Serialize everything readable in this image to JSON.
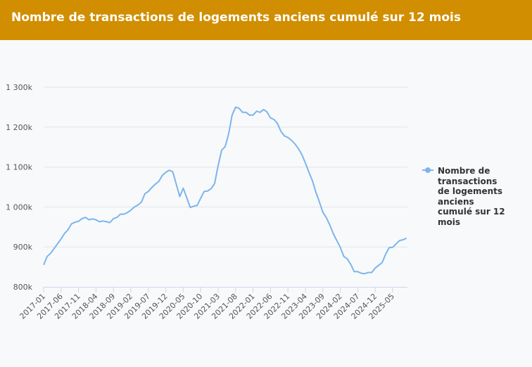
{
  "header": {
    "title": "Nombre de transactions de logements anciens cumulé sur 12 mois"
  },
  "chart_data": {
    "type": "line",
    "title": "Nombre de transactions de logements anciens cumulé sur 12 mois",
    "x_start": "2017-01",
    "x_end": "2025-09",
    "x_tick_labels": [
      "2017-01",
      "2017-06",
      "2017-11",
      "2018-04",
      "2018-09",
      "2019-02",
      "2019-07",
      "2019-12",
      "2020-05",
      "2020-10",
      "2021-03",
      "2021-08",
      "2022-01",
      "2022-06",
      "2022-11",
      "2023-04",
      "2023-09",
      "2024-02",
      "2024-07",
      "2024-12",
      "2025-05"
    ],
    "y_ticks": [
      800,
      900,
      1000,
      1100,
      1200,
      1300
    ],
    "y_tick_labels": [
      "800k",
      "900k",
      "1 000k",
      "1 100k",
      "1 200k",
      "1 300k"
    ],
    "ylim": [
      800,
      1300
    ],
    "y_unit": "thousands",
    "grid": "horizontal",
    "legend_position": "right",
    "color": "#7cb5ec",
    "series": [
      {
        "name": "Nombre de transactions de logements anciens cumulé sur 12 mois",
        "values": [
          855,
          876,
          884,
          896,
          908,
          920,
          934,
          943,
          958,
          962,
          964,
          971,
          974,
          968,
          970,
          968,
          963,
          965,
          963,
          961,
          971,
          974,
          982,
          982,
          986,
          992,
          1000,
          1005,
          1012,
          1033,
          1039,
          1049,
          1057,
          1064,
          1079,
          1087,
          1092,
          1088,
          1057,
          1026,
          1047,
          1023,
          999,
          1002,
          1004,
          1022,
          1039,
          1040,
          1046,
          1059,
          1104,
          1142,
          1151,
          1183,
          1230,
          1250,
          1247,
          1237,
          1237,
          1230,
          1230,
          1240,
          1237,
          1244,
          1238,
          1223,
          1219,
          1209,
          1189,
          1178,
          1174,
          1167,
          1158,
          1146,
          1131,
          1110,
          1087,
          1066,
          1037,
          1013,
          987,
          973,
          955,
          933,
          916,
          899,
          876,
          870,
          856,
          838,
          838,
          834,
          833,
          836,
          836,
          847,
          854,
          861,
          882,
          898,
          899,
          908,
          916,
          918,
          922
        ]
      }
    ]
  }
}
